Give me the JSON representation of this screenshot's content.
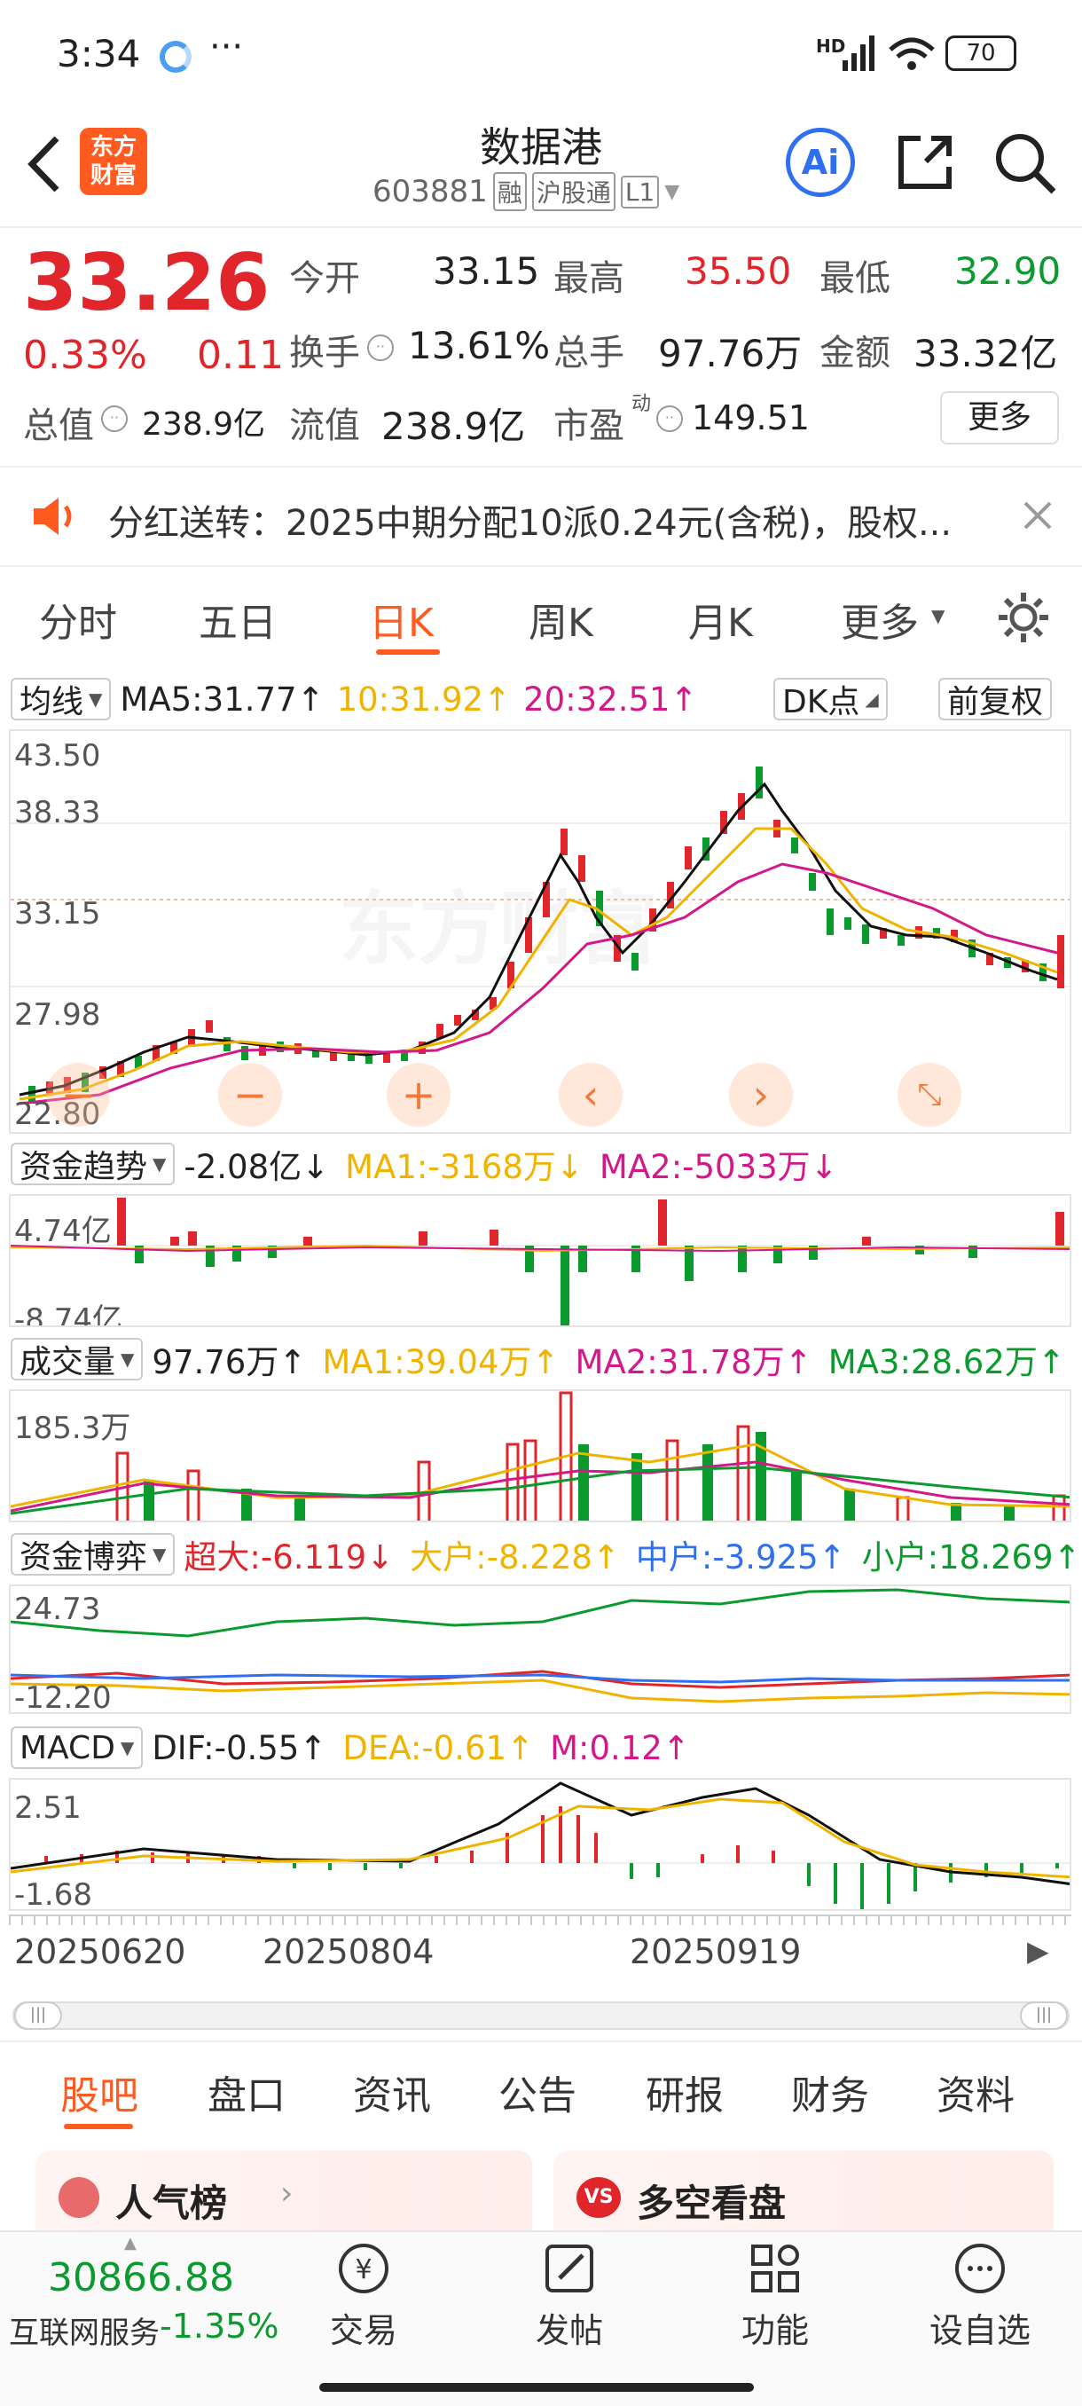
{
  "status_bar": {
    "time": "3:34",
    "dots": "···",
    "network": "HD",
    "battery": "70"
  },
  "header": {
    "title": "数据港",
    "code": "603881",
    "tags": [
      "融",
      "沪股通",
      "L1"
    ],
    "logo_line1": "东方",
    "logo_line2": "财富",
    "ai_label": "Ai"
  },
  "quote": {
    "price": "33.26",
    "change_pct": "0.33%",
    "change": "0.11",
    "open_label": "今开",
    "open": "33.15",
    "high_label": "最高",
    "high": "35.50",
    "low_label": "最低",
    "low": "32.90",
    "turnover_label": "换手",
    "turnover": "13.61%",
    "volume_label": "总手",
    "volume": "97.76万",
    "amount_label": "金额",
    "amount": "33.32亿",
    "mktcap_label": "总值",
    "mktcap": "238.9亿",
    "float_label": "流值",
    "float_cap": "238.9亿",
    "pe_label": "市盈",
    "pe_sup": "动",
    "pe": "149.51",
    "more_button": "更多"
  },
  "notice": {
    "text": "分红送转：2025中期分配10派0.24元(含税)，股权..."
  },
  "chart_tabs": {
    "items": [
      "分时",
      "五日",
      "日K",
      "周K",
      "月K",
      "更多"
    ],
    "active": 2
  },
  "kline": {
    "ma_select": "均线",
    "ma5": "MA5:31.77↑",
    "ma10": "10:31.92↑",
    "ma20": "20:32.51↑",
    "dk_button": "DK点",
    "adjust_button": "前复权",
    "y_labels": [
      "43.50",
      "38.33",
      "33.15",
      "27.98",
      "22.80"
    ],
    "watermark": "东方财富"
  },
  "fund_trend": {
    "select": "资金趋势",
    "value": "-2.08亿↓",
    "ma1": "MA1:-3168万↓",
    "ma2": "MA2:-5033万↓",
    "y_top": "4.74亿",
    "y_bottom": "-8.74亿"
  },
  "volume": {
    "select": "成交量",
    "value": "97.76万↑",
    "ma1": "MA1:39.04万↑",
    "ma2": "MA2:31.78万↑",
    "ma3": "MA3:28.62万↑",
    "y_top": "185.3万"
  },
  "fund_game": {
    "select": "资金博弈",
    "super": "超大:-6.119↓",
    "large": "大户:-8.228↑",
    "mid": "中户:-3.925↑",
    "small": "小户:18.269↑",
    "y_top": "24.73",
    "y_bottom": "-12.20"
  },
  "macd": {
    "select": "MACD",
    "dif": "DIF:-0.55↑",
    "dea": "DEA:-0.61↑",
    "m": "M:0.12↑",
    "y_top": "2.51",
    "y_bottom": "-1.68"
  },
  "dates": [
    "20250620",
    "20250804",
    "20250919"
  ],
  "bottom_tabs": {
    "items": [
      "股吧",
      "盘口",
      "资讯",
      "公告",
      "研报",
      "财务",
      "资料"
    ],
    "active": 0
  },
  "cards": {
    "left": "人气榜",
    "right": "多空看盘",
    "right_badge": "VS"
  },
  "footer": {
    "index_value": "30866.88",
    "index_name": "互联网服务",
    "index_change": "-1.35%",
    "buttons": [
      "交易",
      "发帖",
      "功能",
      "设自选"
    ]
  },
  "colors": {
    "up": "#e0262b",
    "down": "#0a9a2e",
    "accent": "#ff5a1f",
    "ma10": "#f0b400",
    "ma20": "#d4188a"
  }
}
